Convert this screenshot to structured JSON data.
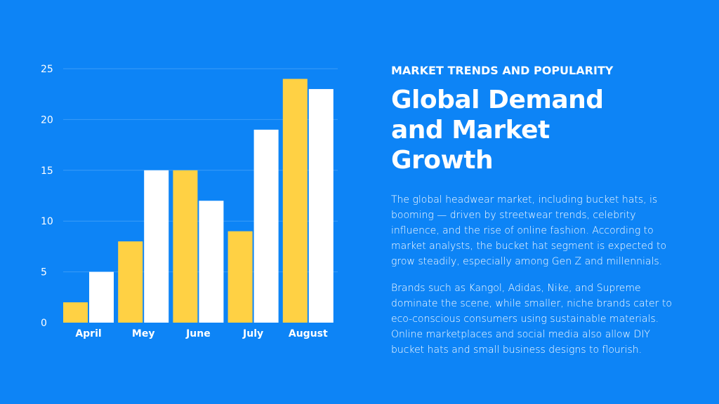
{
  "slide": {
    "eyebrow": "MARKET TRENDS AND POPULARITY",
    "headline": "Global Demand and Market Growth",
    "paragraphs": [
      "The global headwear market, including bucket hats, is booming — driven by streetwear trends, celebrity influence, and the rise of online fashion. According to market analysts, the bucket hat segment is expected to grow steadily, especially among Gen Z and millennials.",
      "Brands such as Kangol, Adidas, Nike, and Supreme dominate the scene, while smaller, niche brands cater to eco-conscious consumers using sustainable materials. Online marketplaces and social media also allow DIY bucket hats and small business designs to flourish."
    ]
  },
  "colors": {
    "background": "#0d84f6",
    "series_1": "#ffd144",
    "series_2": "#ffffff",
    "gridline": "#3b9cf8"
  },
  "chart_data": {
    "type": "bar",
    "categories": [
      "April",
      "Mey",
      "June",
      "July",
      "August"
    ],
    "series": [
      {
        "values": [
          2,
          8,
          15,
          9,
          24
        ]
      },
      {
        "values": [
          5,
          15,
          12,
          19,
          23
        ]
      }
    ],
    "ylim": [
      0,
      25
    ],
    "yticks": [
      "0",
      "5",
      "10",
      "15",
      "20",
      "25"
    ],
    "grid": true,
    "legend": "none"
  }
}
